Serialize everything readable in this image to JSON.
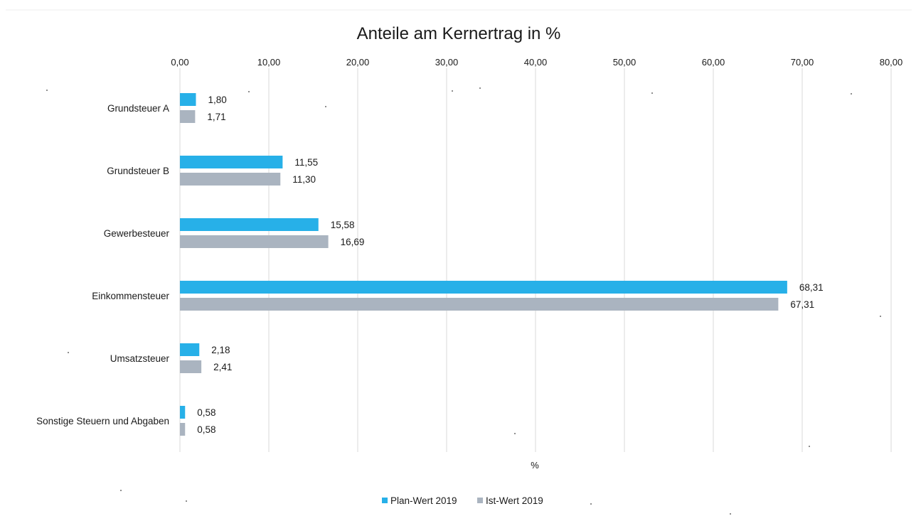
{
  "chart_data": {
    "type": "bar",
    "orientation": "horizontal",
    "title": "Anteile am Kernertrag in %",
    "xlabel": "%",
    "ylabel": "",
    "xlim": [
      0,
      80
    ],
    "x_ticks": [
      "0,00",
      "10,00",
      "20,00",
      "30,00",
      "40,00",
      "50,00",
      "60,00",
      "70,00",
      "80,00"
    ],
    "x_tick_values": [
      0,
      10,
      20,
      30,
      40,
      50,
      60,
      70,
      80
    ],
    "x_axis_position": "top",
    "grid": true,
    "legend_position": "bottom",
    "categories": [
      "Grundsteuer A",
      "Grundsteuer B",
      "Gewerbesteuer",
      "Einkommensteuer",
      "Umsatzsteuer",
      "Sonstige Steuern und Abgaben"
    ],
    "series": [
      {
        "name": "Plan-Wert 2019",
        "color": "#27b0e8",
        "values": [
          1.8,
          11.55,
          15.58,
          68.31,
          2.18,
          0.58
        ],
        "labels": [
          "1,80",
          "11,55",
          "15,58",
          "68,31",
          "2,18",
          "0,58"
        ]
      },
      {
        "name": "Ist-Wert 2019",
        "color": "#aab4c0",
        "values": [
          1.71,
          11.3,
          16.69,
          67.31,
          2.41,
          0.58
        ],
        "labels": [
          "1,71",
          "11,30",
          "16,69",
          "67,31",
          "2,41",
          "0,58"
        ]
      }
    ]
  }
}
